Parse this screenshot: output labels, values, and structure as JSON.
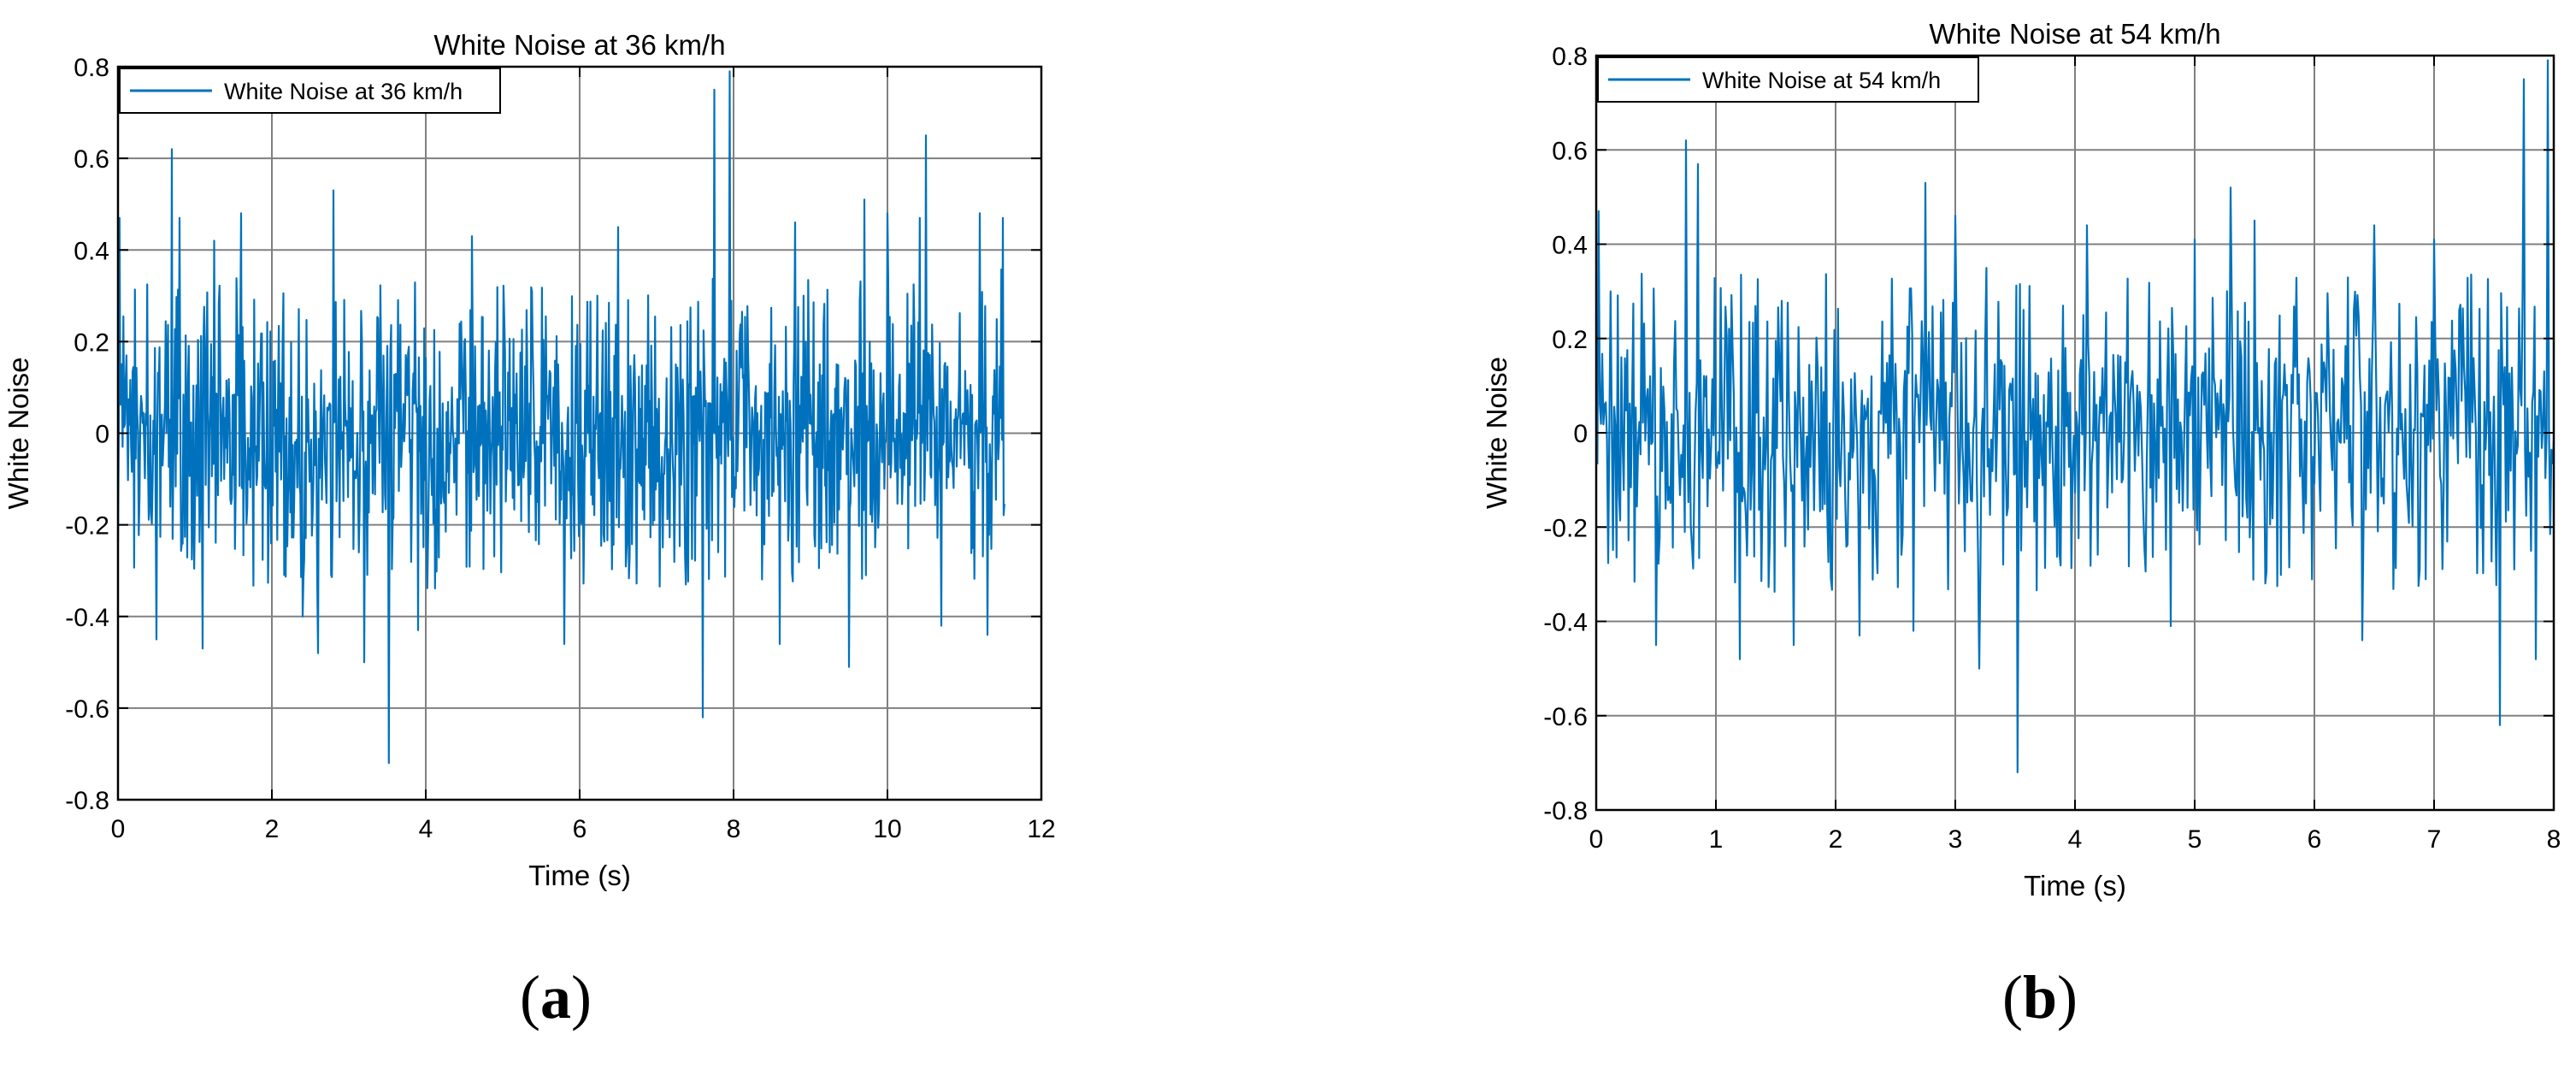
{
  "captions": {
    "a": "a",
    "b": "b"
  },
  "colors": {
    "series": "#0072BD",
    "grid": "#808080",
    "axis": "#000000"
  },
  "chart_data": [
    {
      "type": "line",
      "title": "White Noise at 36 km/h",
      "xlabel": "Time (s)",
      "ylabel": "White Noise",
      "xlim": [
        0,
        12
      ],
      "ylim": [
        -0.8,
        0.8
      ],
      "xticks": [
        0,
        2,
        4,
        6,
        8,
        10,
        12
      ],
      "yticks": [
        -0.8,
        -0.6,
        -0.4,
        -0.2,
        0,
        0.2,
        0.4,
        0.6,
        0.8
      ],
      "xtick_labels": [
        "0",
        "2",
        "4",
        "6",
        "8",
        "10",
        "12"
      ],
      "ytick_labels": [
        "-0.8",
        "-0.6",
        "-0.4",
        "-0.2",
        "0",
        "0.2",
        "0.4",
        "0.6",
        "0.8"
      ],
      "grid": true,
      "legend": "top-left",
      "sample_step": 0.01,
      "x_end": 11.52,
      "series": [
        {
          "name": "White Noise at 36 km/h",
          "color": "#0072BD",
          "peaks": [
            [
              0.02,
              0.47
            ],
            [
              0.7,
              0.62
            ],
            [
              0.8,
              0.47
            ],
            [
              1.1,
              0.43
            ],
            [
              1.25,
              0.42
            ],
            [
              1.6,
              0.48
            ],
            [
              2.8,
              0.53
            ],
            [
              4.6,
              0.43
            ],
            [
              6.5,
              0.45
            ],
            [
              7.75,
              0.75
            ],
            [
              7.95,
              0.79
            ],
            [
              8.8,
              0.46
            ],
            [
              9.7,
              0.51
            ],
            [
              10.0,
              0.48
            ],
            [
              10.42,
              0.47
            ],
            [
              10.5,
              0.65
            ],
            [
              11.2,
              0.48
            ],
            [
              11.5,
              0.47
            ],
            [
              0.5,
              -0.45
            ],
            [
              1.1,
              -0.47
            ],
            [
              2.4,
              -0.4
            ],
            [
              2.6,
              -0.48
            ],
            [
              3.2,
              -0.5
            ],
            [
              3.52,
              -0.72
            ],
            [
              3.9,
              -0.43
            ],
            [
              5.8,
              -0.46
            ],
            [
              7.6,
              -0.62
            ],
            [
              8.6,
              -0.46
            ],
            [
              9.5,
              -0.51
            ],
            [
              10.7,
              -0.42
            ],
            [
              11.3,
              -0.44
            ]
          ]
        }
      ]
    },
    {
      "type": "line",
      "title": "White Noise at 54 km/h",
      "xlabel": "Time (s)",
      "ylabel": "White Noise",
      "xlim": [
        0,
        8
      ],
      "ylim": [
        -0.8,
        0.8
      ],
      "xticks": [
        0,
        1,
        2,
        3,
        4,
        5,
        6,
        7,
        8
      ],
      "yticks": [
        -0.8,
        -0.6,
        -0.4,
        -0.2,
        0,
        0.2,
        0.4,
        0.6,
        0.8
      ],
      "xtick_labels": [
        "0",
        "1",
        "2",
        "3",
        "4",
        "5",
        "6",
        "7",
        "8"
      ],
      "ytick_labels": [
        "-0.8",
        "-0.6",
        "-0.4",
        "-0.2",
        "0",
        "0.2",
        "0.4",
        "0.6",
        "0.8"
      ],
      "grid": true,
      "legend": "top-left",
      "sample_step": 0.01,
      "x_end": 8.0,
      "series": [
        {
          "name": "White Noise at 54 km/h",
          "color": "#0072BD",
          "peaks": [
            [
              0.02,
              0.47
            ],
            [
              0.75,
              0.62
            ],
            [
              0.85,
              0.57
            ],
            [
              1.2,
              0.45
            ],
            [
              1.65,
              0.48
            ],
            [
              2.75,
              0.53
            ],
            [
              3.0,
              0.46
            ],
            [
              4.1,
              0.44
            ],
            [
              5.0,
              0.41
            ],
            [
              5.3,
              0.52
            ],
            [
              5.5,
              0.45
            ],
            [
              6.5,
              0.44
            ],
            [
              7.0,
              0.41
            ],
            [
              7.55,
              0.44
            ],
            [
              7.75,
              0.75
            ],
            [
              7.95,
              0.79
            ],
            [
              0.5,
              -0.45
            ],
            [
              1.2,
              -0.48
            ],
            [
              1.65,
              -0.45
            ],
            [
              2.2,
              -0.43
            ],
            [
              2.65,
              -0.42
            ],
            [
              3.2,
              -0.5
            ],
            [
              3.52,
              -0.72
            ],
            [
              4.8,
              -0.41
            ],
            [
              6.4,
              -0.44
            ],
            [
              7.55,
              -0.62
            ],
            [
              7.85,
              -0.48
            ]
          ]
        }
      ]
    }
  ]
}
